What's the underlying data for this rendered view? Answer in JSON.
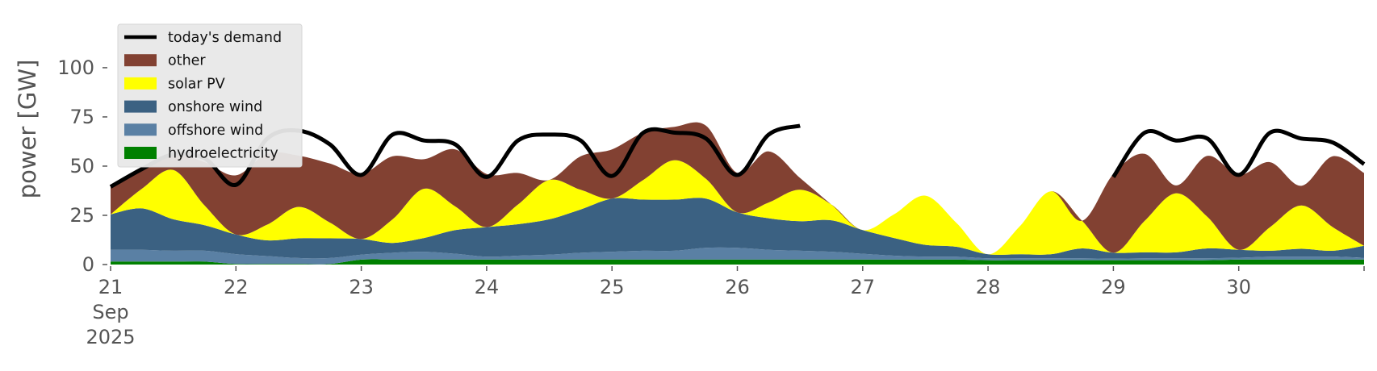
{
  "chart_data": {
    "type": "area",
    "ylabel": "power [GW]",
    "ylim": [
      0,
      118
    ],
    "xlim": [
      0,
      10
    ],
    "x_ticks": [
      {
        "x": 0,
        "label": "21",
        "sublabels": [
          "Sep",
          "2025"
        ]
      },
      {
        "x": 1,
        "label": "22"
      },
      {
        "x": 2,
        "label": "23"
      },
      {
        "x": 3,
        "label": "24"
      },
      {
        "x": 4,
        "label": "25"
      },
      {
        "x": 5,
        "label": "26"
      },
      {
        "x": 6,
        "label": "27"
      },
      {
        "x": 7,
        "label": "28"
      },
      {
        "x": 8,
        "label": "29"
      },
      {
        "x": 9,
        "label": "30"
      }
    ],
    "y_ticks": [
      0,
      25,
      50,
      75,
      100
    ],
    "legend_position": "top-left",
    "x": [
      0,
      0.25,
      0.5,
      0.75,
      1,
      1.25,
      1.5,
      1.75,
      2,
      2.25,
      2.5,
      2.75,
      3,
      3.25,
      3.5,
      3.75,
      4,
      4.25,
      4.5,
      4.75,
      5,
      5.25,
      5.5,
      5.75,
      6,
      6.25,
      6.5,
      6.75,
      7,
      7.25,
      7.5,
      7.75,
      8,
      8.25,
      8.5,
      8.75,
      9,
      9.25,
      9.5,
      9.75,
      10
    ],
    "series": [
      {
        "name": "hydroelectricity",
        "color": "#008000",
        "values": [
          1.5,
          1.5,
          1.5,
          1.5,
          0.3,
          0.3,
          0.3,
          0.3,
          2.5,
          2.5,
          2.5,
          2.5,
          2.5,
          2.5,
          2.5,
          2.5,
          2.5,
          2.5,
          2.5,
          2.5,
          2.5,
          2.5,
          2.5,
          2.5,
          2.5,
          2.5,
          2.5,
          2.5,
          2.2,
          2.2,
          2.2,
          2.2,
          2.2,
          2.2,
          2.2,
          2.2,
          2.5,
          2.5,
          2.5,
          2.5,
          2.5
        ]
      },
      {
        "name": "offshore wind",
        "color": "#5a80a4",
        "values": [
          6,
          6,
          5.5,
          5.5,
          5,
          4,
          3,
          3,
          2.5,
          3.5,
          4,
          3,
          1.5,
          2,
          2.5,
          3.5,
          4,
          4.5,
          4.5,
          6,
          6,
          5,
          4.5,
          4,
          3,
          2,
          1.5,
          1.5,
          1,
          1,
          1,
          1,
          0.8,
          1,
          1,
          1,
          1,
          1.5,
          1.5,
          1.5,
          1
        ]
      },
      {
        "name": "onshore wind",
        "color": "#3b6182",
        "values": [
          18,
          21,
          16,
          13,
          10,
          8,
          10,
          10,
          8,
          5,
          7,
          12,
          15,
          16,
          18,
          22,
          27,
          26,
          26,
          25,
          18,
          16,
          15,
          16,
          12,
          9,
          6,
          5,
          2,
          2,
          2,
          5,
          3,
          3,
          3,
          5,
          4,
          3,
          4,
          3,
          6
        ]
      },
      {
        "name": "solar PV",
        "color": "#ffff00",
        "values": [
          0,
          10,
          25,
          10,
          0,
          8,
          16,
          8,
          0,
          12,
          25,
          12,
          0,
          10,
          20,
          10,
          0,
          10,
          20,
          10,
          0,
          8,
          16,
          8,
          0,
          12,
          25,
          12,
          0,
          14,
          32,
          14,
          0,
          16,
          30,
          16,
          0,
          12,
          22,
          12,
          0
        ]
      },
      {
        "name": "other",
        "color": "#824132",
        "values": [
          14,
          10,
          8,
          22,
          30,
          36,
          26,
          30,
          33,
          32,
          15,
          29,
          27,
          16,
          0,
          17,
          25,
          24,
          17,
          27,
          20,
          26,
          6,
          0,
          0,
          0,
          0,
          0,
          0,
          0,
          0,
          0,
          40,
          34,
          4,
          31,
          38,
          33,
          10,
          36,
          37
        ]
      }
    ],
    "demand": {
      "name": "today's demand",
      "color": "#000000",
      "values": [
        39.5,
        48.5,
        56,
        54,
        40.5,
        64,
        68,
        61,
        45.5,
        66,
        63,
        61,
        44.5,
        63,
        66,
        63,
        45,
        67,
        67,
        64,
        45.5,
        66,
        null,
        null,
        null,
        null,
        null,
        null,
        null,
        null,
        null,
        null,
        44.5,
        67,
        63,
        64,
        45.5,
        67,
        64,
        62,
        51
      ],
      "extra_points": [
        [
          5.5,
          70.5
        ],
        [
          7.97,
          null
        ]
      ]
    }
  }
}
